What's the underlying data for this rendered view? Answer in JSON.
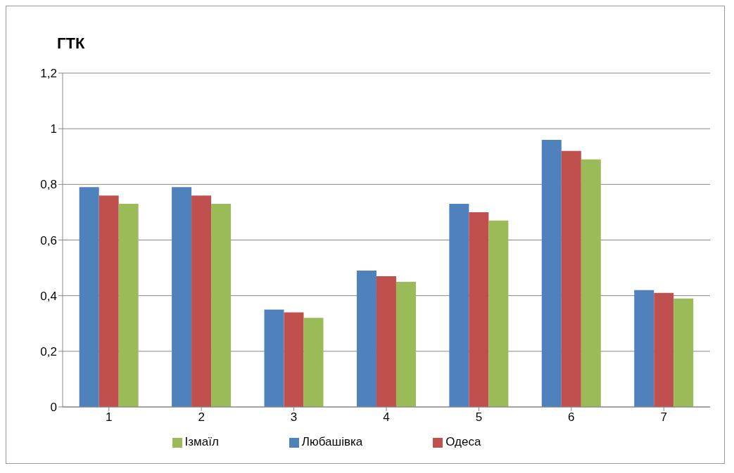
{
  "chart_data": {
    "type": "bar",
    "ylabel": "ГТК",
    "categories": [
      "1",
      "2",
      "3",
      "4",
      "5",
      "6",
      "7"
    ],
    "series": [
      {
        "name": "Любашівка",
        "color": "#4f81bd",
        "values": [
          0.79,
          0.79,
          0.35,
          0.49,
          0.73,
          0.96,
          0.42
        ]
      },
      {
        "name": "Одеса",
        "color": "#c0504d",
        "values": [
          0.76,
          0.76,
          0.34,
          0.47,
          0.7,
          0.92,
          0.41
        ]
      },
      {
        "name": "Ізмаїл",
        "color": "#9bbb59",
        "values": [
          0.73,
          0.73,
          0.32,
          0.45,
          0.67,
          0.89,
          0.39
        ]
      }
    ],
    "ylim": [
      0,
      1.2
    ],
    "yticks": [
      0,
      {
        "value": 0.2,
        "label": "0,2"
      },
      {
        "value": 0.4,
        "label": "0,4"
      },
      {
        "value": 0.6,
        "label": "0,6"
      },
      {
        "value": 0.8,
        "label": "0,8"
      },
      1,
      {
        "value": 1.2,
        "label": "1,2"
      }
    ],
    "grid": "y",
    "legend": "bottom"
  }
}
